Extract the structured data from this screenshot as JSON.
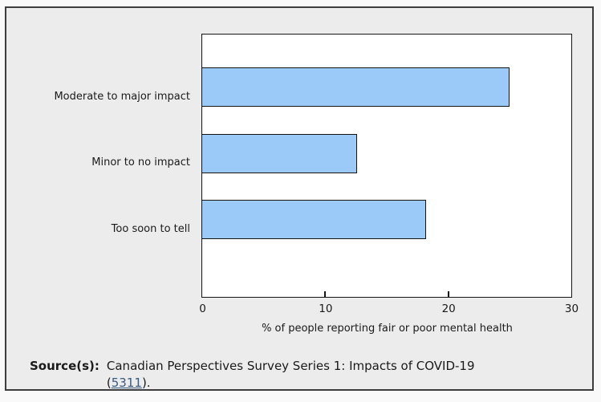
{
  "chart_data": {
    "type": "bar",
    "orientation": "horizontal",
    "title": "",
    "categories": [
      "Moderate to major impact",
      "Minor to no impact",
      "Too soon to tell"
    ],
    "values": [
      25.1,
      12.7,
      18.3
    ],
    "xlabel": "% of people reporting fair or poor mental health",
    "ylabel": "",
    "x_ticks": [
      0,
      10,
      20,
      30
    ],
    "xlim": [
      0,
      30
    ],
    "grid": "off",
    "legend": "none",
    "bar_color": "#9bc9f8",
    "bar_border_color": "#141414",
    "plot_background": "#ffffff",
    "panel_background": "#ececec"
  },
  "source": {
    "label": "Source(s):",
    "text": "Canadian Perspectives Survey Series 1: Impacts of COVID-19",
    "link_prefix": "(",
    "link_text": "5311",
    "link_suffix": ")."
  },
  "colors": {
    "page_background": "#f9f9f9",
    "frame_border": "#3d3d3d",
    "text": "#1a1a1a",
    "link": "#375a7f"
  }
}
